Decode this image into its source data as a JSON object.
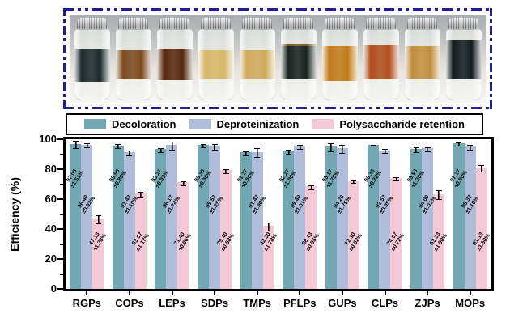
{
  "photo": {
    "border_color": "#1d1d96",
    "vials": [
      {
        "liquid_color": "#1c2a2b",
        "top_pct": 27,
        "height_pct": 47
      },
      {
        "liquid_color": "#7c4a1e",
        "top_pct": 29,
        "height_pct": 42
      },
      {
        "liquid_color": "#57290f",
        "top_pct": 27,
        "height_pct": 45
      },
      {
        "liquid_color": "#d5b766",
        "top_pct": 29,
        "height_pct": 40
      },
      {
        "liquid_color": "#cfa95c",
        "top_pct": 29,
        "height_pct": 40
      },
      {
        "liquid_color": "#192320",
        "top_pct": 20,
        "height_pct": 50,
        "rim_color": "#7a5a16"
      },
      {
        "liquid_color": "#c07b1b",
        "top_pct": 24,
        "height_pct": 49
      },
      {
        "liquid_color": "#b04d1d",
        "top_pct": 22,
        "height_pct": 49
      },
      {
        "liquid_color": "#c18d3c",
        "top_pct": 24,
        "height_pct": 45
      },
      {
        "liquid_color": "#131d1f",
        "top_pct": 16,
        "height_pct": 55
      }
    ]
  },
  "chart_data": {
    "type": "bar",
    "title": "",
    "ylabel": "Efficiency (%)",
    "ylim": [
      0,
      100
    ],
    "yticks_major": [
      0,
      20,
      40,
      60,
      80,
      100
    ],
    "yticks_minor": [
      10,
      30,
      50,
      70,
      90
    ],
    "grid": false,
    "legend_position": "top",
    "categories": [
      "RGPs",
      "COPs",
      "LEPs",
      "SDPs",
      "TMPs",
      "PFLPs",
      "GUPs",
      "CLPs",
      "ZJPs",
      "MOPs"
    ],
    "series": [
      {
        "name": "Decoloration",
        "color": "#72a8b4",
        "values": [
          97.0,
          95.9,
          93.27,
          96.3,
          91.27,
          92.27,
          95.17,
          96.33,
          93.5,
          97.27
        ],
        "errors": [
          1.51,
          0.89,
          0.93,
          0.9,
          0.96,
          1.0,
          1.75,
          0.32,
          1.2,
          0.9
        ]
      },
      {
        "name": "Deproteinization",
        "color": "#afbdda",
        "values": [
          96.4,
          91.43,
          96.17,
          95.53,
          91.47,
          95.4,
          94.2,
          92.57,
          94.0,
          95.37
        ],
        "errors": [
          0.92,
          1.1,
          1.74,
          1.25,
          1.9,
          1.01,
          1.75,
          0.95,
          1.01,
          1.1
        ]
      },
      {
        "name": "Polysaccharide retention",
        "color": "#f4c8d4",
        "values": [
          47.13,
          63.67,
          71.4,
          79.4,
          42.3,
          68.43,
          72.1,
          74.07,
          63.33,
          81.13
        ],
        "errors": [
          1.78,
          1.17,
          0.96,
          0.98,
          1.78,
          0.95,
          0.62,
          0.72,
          1.9,
          1.5
        ]
      }
    ],
    "bar_label_format": "{value} ±{error}%"
  }
}
